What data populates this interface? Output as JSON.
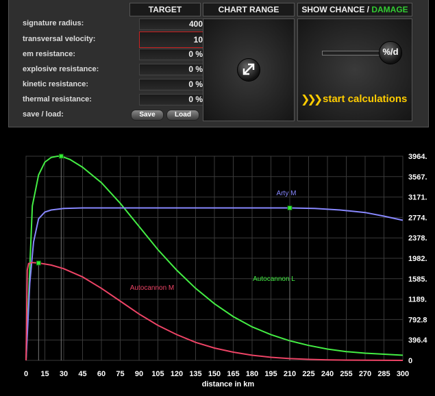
{
  "settings": {
    "rows": [
      {
        "label": "signature radius:",
        "value": "400"
      },
      {
        "label": "transversal velocity:",
        "value": "10"
      },
      {
        "label": "em resistance:",
        "value": "0 %"
      },
      {
        "label": "explosive resistance:",
        "value": "0 %"
      },
      {
        "label": "kinetic resistance:",
        "value": "0 %"
      },
      {
        "label": "thermal resistance:",
        "value": "0 %"
      }
    ],
    "save_load_label": "save / load:",
    "save_label": "Save",
    "load_label": "Load"
  },
  "headers": {
    "target": "TARGET",
    "chart_range": "CHART RANGE",
    "show_chance": "SHOW CHANCE / ",
    "damage": "DAMAGE"
  },
  "toggle_knob": "%/d",
  "start_label": "start calculations",
  "colors": {
    "accent_green": "#33cc33",
    "start_yellow": "#ffcc00"
  },
  "chart_data": {
    "type": "line",
    "xlabel": "distance in km",
    "ylabel": "",
    "xlim": [
      0,
      300
    ],
    "ylim": [
      0,
      3964
    ],
    "xticks": [
      0,
      15,
      30,
      45,
      60,
      75,
      90,
      105,
      120,
      135,
      150,
      165,
      180,
      195,
      210,
      225,
      240,
      255,
      270,
      285,
      300
    ],
    "yticks": [
      "0",
      "396.4",
      "792.8",
      "1189.",
      "1585.",
      "1982.",
      "2378.",
      "2774.",
      "3171.",
      "3567.",
      "3964."
    ],
    "grid": true,
    "series": [
      {
        "name": "Autocannon L",
        "color": "#44ee44",
        "x": [
          0,
          5,
          10,
          15,
          20,
          25,
          28,
          35,
          45,
          60,
          75,
          90,
          105,
          120,
          135,
          150,
          165,
          180,
          195,
          210,
          225,
          240,
          255,
          270,
          285,
          300
        ],
        "y": [
          0,
          3000,
          3600,
          3850,
          3940,
          3964,
          3964,
          3900,
          3750,
          3450,
          3050,
          2600,
          2150,
          1750,
          1400,
          1100,
          850,
          650,
          500,
          380,
          290,
          220,
          170,
          140,
          120,
          100
        ],
        "marker_x": 28
      },
      {
        "name": "Arty M",
        "color": "#8888ff",
        "x": [
          0,
          3,
          6,
          10,
          15,
          20,
          30,
          45,
          60,
          90,
          120,
          150,
          180,
          210,
          230,
          250,
          270,
          285,
          300
        ],
        "y": [
          0,
          1500,
          2300,
          2750,
          2880,
          2920,
          2950,
          2960,
          2960,
          2960,
          2960,
          2960,
          2960,
          2960,
          2950,
          2920,
          2870,
          2800,
          2720
        ],
        "marker_x": 210
      },
      {
        "name": "Autocannon M",
        "color": "#ee4466",
        "x": [
          0,
          1,
          2,
          5,
          10,
          20,
          30,
          45,
          60,
          75,
          90,
          105,
          120,
          135,
          150,
          165,
          180,
          195,
          210,
          225,
          240,
          255,
          270,
          285,
          300
        ],
        "y": [
          0,
          1750,
          1880,
          1900,
          1890,
          1850,
          1780,
          1620,
          1400,
          1150,
          900,
          680,
          500,
          350,
          240,
          160,
          100,
          60,
          35,
          20,
          10,
          5,
          3,
          1,
          0
        ],
        "marker_x": 10
      }
    ]
  }
}
